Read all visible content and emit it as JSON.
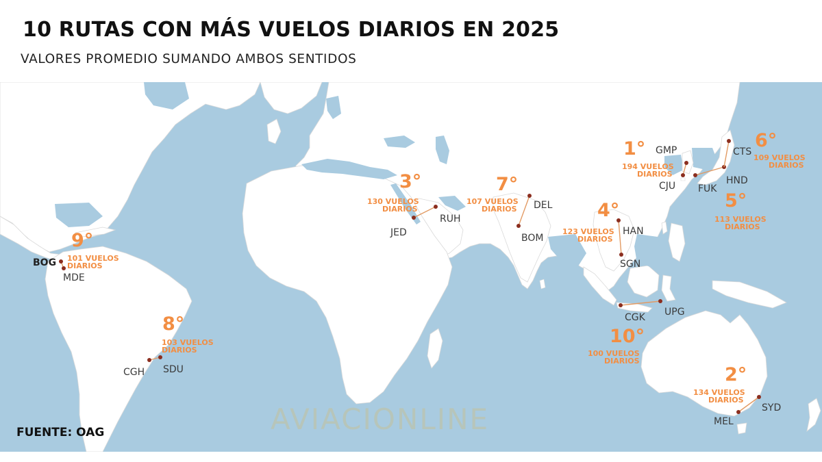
{
  "header": {
    "title": "10 RUTAS CON MÁS VUELOS DIARIOS EN 2025",
    "subtitle": "VALORES PROMEDIO SUMANDO AMBOS SENTIDOS"
  },
  "footer": {
    "source": "FUENTE: OAG",
    "watermark": "AVIACIONLINE"
  },
  "colors": {
    "ocean": "#a9cbe0",
    "land": "#ffffff",
    "accent": "#f28e43",
    "airport_dot": "#8b2e1f"
  },
  "routes": [
    {
      "rank": "1°",
      "flights_line1": "194 VUELOS",
      "flights_line2": "DIARIOS",
      "from": "GMP",
      "to": "CJU",
      "daily_flights": 194
    },
    {
      "rank": "2°",
      "flights_line1": "134 VUELOS",
      "flights_line2": "DIARIOS",
      "from": "SYD",
      "to": "MEL",
      "daily_flights": 134
    },
    {
      "rank": "3°",
      "flights_line1": "130 VUELOS",
      "flights_line2": "DIARIOS",
      "from": "RUH",
      "to": "JED",
      "daily_flights": 130
    },
    {
      "rank": "4°",
      "flights_line1": "123 VUELOS",
      "flights_line2": "DIARIOS",
      "from": "HAN",
      "to": "SGN",
      "daily_flights": 123
    },
    {
      "rank": "5°",
      "flights_line1": "113 VUELOS",
      "flights_line2": "DIARIOS",
      "from": "HND",
      "to": "FUK",
      "daily_flights": 113
    },
    {
      "rank": "6°",
      "flights_line1": "109 VUELOS",
      "flights_line2": "DIARIOS",
      "from": "CTS",
      "to": "HND",
      "daily_flights": 109
    },
    {
      "rank": "7°",
      "flights_line1": "107 VUELOS",
      "flights_line2": "DIARIOS",
      "from": "DEL",
      "to": "BOM",
      "daily_flights": 107
    },
    {
      "rank": "8°",
      "flights_line1": "103 VUELOS",
      "flights_line2": "DIARIOS",
      "from": "CGH",
      "to": "SDU",
      "daily_flights": 103
    },
    {
      "rank": "9°",
      "flights_line1": "101 VUELOS",
      "flights_line2": "DIARIOS",
      "from": "BOG",
      "to": "MDE",
      "daily_flights": 101
    },
    {
      "rank": "10°",
      "flights_line1": "100 VUELOS",
      "flights_line2": "DIARIOS",
      "from": "CGK",
      "to": "UPG",
      "daily_flights": 100
    }
  ]
}
